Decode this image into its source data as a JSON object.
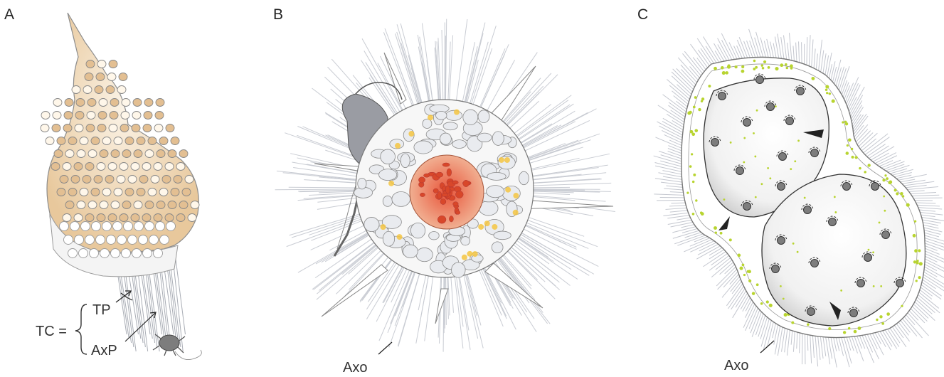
{
  "panels": [
    {
      "letter": "A",
      "labels": {
        "tc": "TC =",
        "tp": "TP",
        "axp": "AxP"
      }
    },
    {
      "letter": "B",
      "labels": {
        "axo": "Axo"
      }
    },
    {
      "letter": "C",
      "labels": {
        "axo": "Axo"
      }
    }
  ],
  "colors": {
    "skeleton_fill": "#f2d9b8",
    "skeleton_stroke": "#8c8c8c",
    "central_capsule": "#e06a3a",
    "yellow_granules": "#f5c542",
    "green_dots": "#b8d430",
    "axopodia": "#c9ccd3",
    "nuclei": "#7d7d7d"
  },
  "icons": [
    "copepod-prey-icon",
    "mite-prey-icon",
    "arrowhead-marker-icon"
  ]
}
